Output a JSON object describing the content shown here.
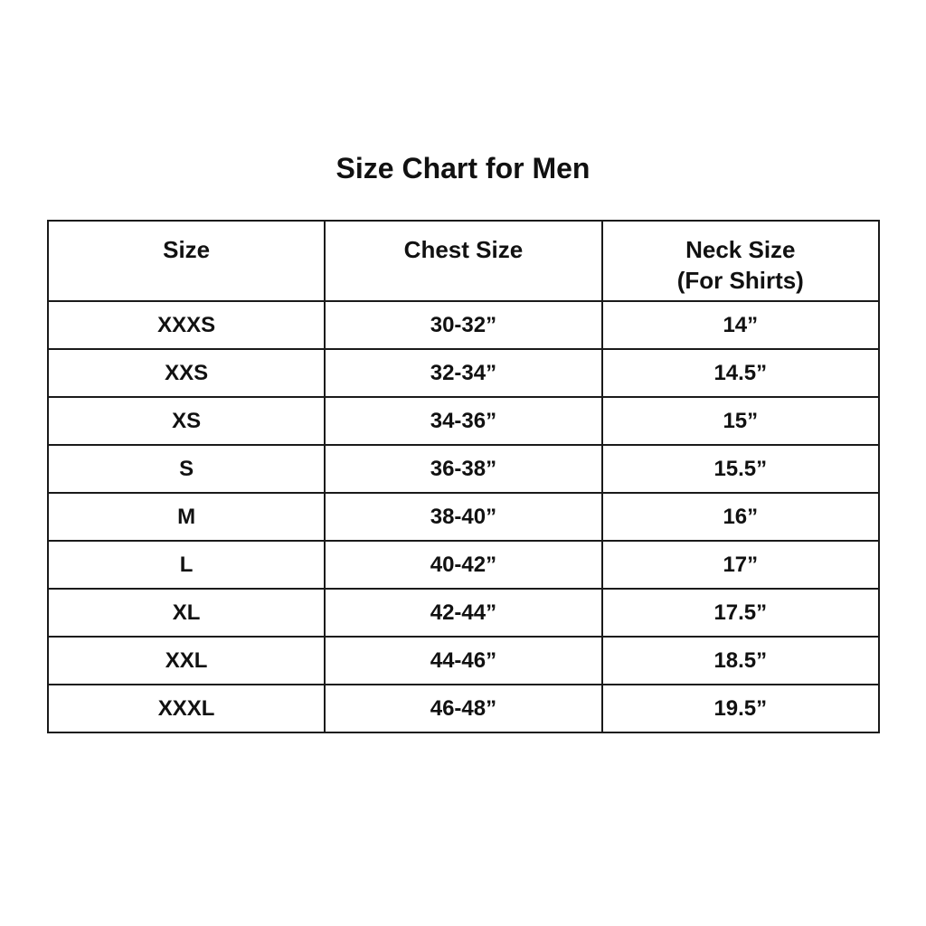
{
  "title": "Size Chart for Men",
  "headers": {
    "size": "Size",
    "chest": "Chest Size",
    "neck": "Neck Size",
    "neck_sub": "(For Shirts)"
  },
  "rows": [
    {
      "size": "XXXS",
      "chest": "30-32”",
      "neck": "14”"
    },
    {
      "size": "XXS",
      "chest": "32-34”",
      "neck": "14.5”"
    },
    {
      "size": "XS",
      "chest": "34-36”",
      "neck": "15”"
    },
    {
      "size": "S",
      "chest": "36-38”",
      "neck": "15.5”"
    },
    {
      "size": "M",
      "chest": "38-40”",
      "neck": "16”"
    },
    {
      "size": "L",
      "chest": "40-42”",
      "neck": "17”"
    },
    {
      "size": "XL",
      "chest": "42-44”",
      "neck": "17.5”"
    },
    {
      "size": "XXL",
      "chest": "44-46”",
      "neck": "18.5”"
    },
    {
      "size": "XXXL",
      "chest": "46-48”",
      "neck": "19.5”"
    }
  ]
}
